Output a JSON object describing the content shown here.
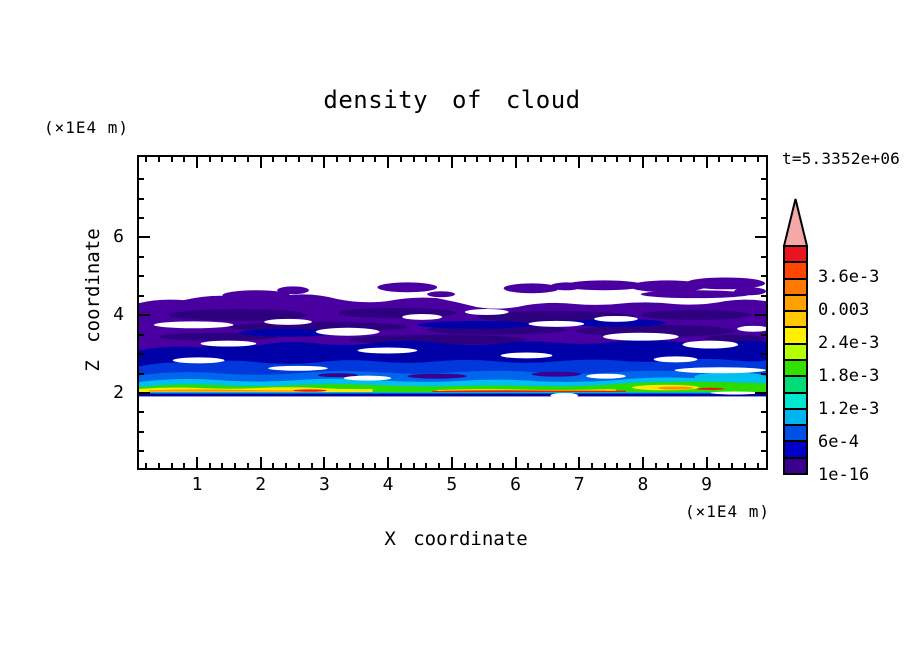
{
  "title": "density of cloud",
  "annotations": {
    "time": "t=5.3352e+06"
  },
  "axes": {
    "x": {
      "label": "X coordinate",
      "unit": "(×1E4 m)",
      "tick_labels": [
        "1",
        "2",
        "3",
        "4",
        "5",
        "6",
        "7",
        "8",
        "9"
      ],
      "tick_values": [
        1,
        2,
        3,
        4,
        5,
        6,
        7,
        8,
        9
      ],
      "range": [
        0,
        10
      ],
      "minor_step": 0.2
    },
    "y": {
      "label": "Z coordinate",
      "unit": "(×1E4 m)",
      "tick_labels": [
        "6",
        "4",
        "2"
      ],
      "tick_values": [
        6,
        4,
        2
      ],
      "range": [
        0,
        8
      ],
      "minor_step": 0.5
    }
  },
  "colorbar": {
    "labels": [
      "3.6e-3",
      "0.003",
      "2.4e-3",
      "1.8e-3",
      "1.2e-3",
      "6e-4",
      "1e-16"
    ],
    "colors": [
      "#E81420",
      "#FF4600",
      "#FF7800",
      "#FFA000",
      "#FFC800",
      "#FFF000",
      "#B4FF00",
      "#32E100",
      "#00DC78",
      "#00E6D0",
      "#00B4F0",
      "#0050E8",
      "#0000C8",
      "#38008C"
    ],
    "arrow_color": "#F4A8A8"
  },
  "chart_data": {
    "type": "heatmap",
    "title": "density of cloud",
    "xlabel": "X coordinate",
    "ylabel": "Z coordinate",
    "x_unit": "(×1E4 m)",
    "y_unit": "(×1E4 m)",
    "xlim": [
      0,
      10
    ],
    "ylim": [
      0,
      8
    ],
    "x_ticks": [
      1,
      2,
      3,
      4,
      5,
      6,
      7,
      8,
      9
    ],
    "y_ticks": [
      2,
      4,
      6
    ],
    "time_annotation": "t=5.3352e+06",
    "contour_levels": [
      1e-16,
      0.0006,
      0.0012,
      0.0018,
      0.0024,
      0.003,
      0.0036,
      0.0042
    ],
    "legend_position": "right colorbar with overflow arrow at top",
    "grid": false,
    "structure_bands": [
      {
        "density_range": "1e-16 to 6e-4",
        "color": "violet/navy",
        "z_extent": [
          2.0,
          4.8
        ],
        "note": "broken stratiform deck spanning full x range, cloud tops 4.2-4.8 with white gaps"
      },
      {
        "density_range": "6e-4 to 1.2e-3",
        "color": "blue",
        "z_extent": [
          2.2,
          3.1
        ],
        "note": "continuous layer"
      },
      {
        "density_range": "1.2e-3 to 1.8e-3",
        "color": "cyan",
        "z_extent": [
          2.15,
          2.55
        ],
        "note": "thicker near x=9-10"
      },
      {
        "density_range": "1.8e-3 to 2.4e-3",
        "color": "green",
        "z_extent": [
          2.1,
          2.4
        ],
        "note": "thicker near x=8-10"
      },
      {
        "density_range": "2.4e-3 to 3e-3",
        "color": "yellow",
        "z_extent": [
          2.05,
          2.3
        ],
        "note": "strong near x=0-3.5 and 7.8-8.8"
      },
      {
        "density_range": "3e-3 to 3.6e-3",
        "color": "orange",
        "z_extent": [
          2.0,
          2.2
        ],
        "note": "thin streaks"
      },
      {
        "density_range": "above 3.6e-3",
        "color": "red",
        "z_extent": [
          2.0,
          2.12
        ],
        "note": "thin streaks near cloud base, mainly x 2.5-7.5"
      },
      {
        "density_range": "cloud base line",
        "color": "navy",
        "z_extent": [
          2.0,
          2.05
        ],
        "note": "sharp flat base at z=2; clear air below"
      }
    ]
  }
}
